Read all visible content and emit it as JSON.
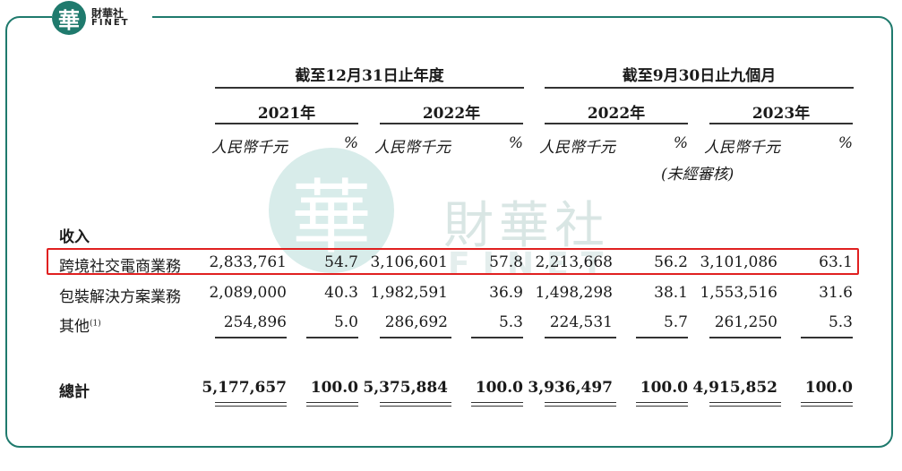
{
  "brand": {
    "logo_char": "華",
    "name_cn": "財華社",
    "name_en": "FINET"
  },
  "header": {
    "period_annual": "截至12月31日止年度",
    "period_nine_months": "截至9月30日止九個月",
    "years": [
      "2021年",
      "2022年",
      "2022年",
      "2023年"
    ],
    "unit_label": "人民幣千元",
    "pct_label": "%",
    "unaudited_note": "(未經審核)"
  },
  "section_title": "收入",
  "rows": [
    {
      "label": "跨境社交電商業務",
      "sup": "",
      "values": [
        "2,833,761",
        "54.7",
        "3,106,601",
        "57.8",
        "2,213,668",
        "56.2",
        "3,101,086",
        "63.1"
      ]
    },
    {
      "label": "包裝解決方案業務",
      "sup": "",
      "values": [
        "2,089,000",
        "40.3",
        "1,982,591",
        "36.9",
        "1,498,298",
        "38.1",
        "1,553,516",
        "31.6"
      ]
    },
    {
      "label": "其他",
      "sup": "(1)",
      "values": [
        "254,896",
        "5.0",
        "286,692",
        "5.3",
        "224,531",
        "5.7",
        "261,250",
        "5.3"
      ]
    }
  ],
  "total": {
    "label": "總計",
    "values": [
      "5,177,657",
      "100.0",
      "5,375,884",
      "100.0",
      "3,936,497",
      "100.0",
      "4,915,852",
      "100.0"
    ]
  },
  "colors": {
    "frame": "#1f7a6d",
    "highlight": "#e02020"
  }
}
